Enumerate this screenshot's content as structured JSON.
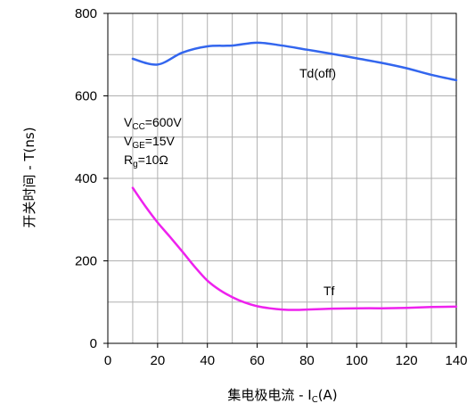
{
  "chart_data": {
    "type": "line",
    "xlabel": {
      "main": "集电极电流 - I",
      "sub": "C",
      "tail": "(A)"
    },
    "ylabel": "开关时间 - T(ns)",
    "xlim": [
      0,
      140
    ],
    "ylim": [
      0,
      800
    ],
    "x_ticks": [
      0,
      20,
      40,
      60,
      80,
      100,
      120,
      140
    ],
    "y_ticks": [
      0,
      200,
      400,
      600,
      800
    ],
    "grid": true,
    "conditions": [
      {
        "main": "V",
        "sub": "CC",
        "tail": "=600V"
      },
      {
        "main": "V",
        "sub": "GE",
        "tail": "=15V"
      },
      {
        "main": "R",
        "sub": "g",
        "tail": "=10Ω"
      }
    ],
    "series": [
      {
        "name": "Td(off)",
        "color": "#3366ee",
        "x": [
          10,
          20,
          30,
          40,
          50,
          60,
          70,
          80,
          90,
          100,
          110,
          120,
          130,
          140
        ],
        "y": [
          690,
          676,
          705,
          720,
          722,
          729,
          722,
          712,
          702,
          691,
          680,
          667,
          651,
          638
        ]
      },
      {
        "name": "Tf",
        "color": "#ee22ee",
        "x": [
          10,
          15,
          20,
          25,
          30,
          35,
          40,
          45,
          50,
          55,
          60,
          65,
          70,
          75,
          80,
          90,
          100,
          110,
          120,
          130,
          140
        ],
        "y": [
          377,
          333,
          293,
          258,
          222,
          185,
          152,
          129,
          112,
          99,
          90,
          85,
          82,
          81,
          82,
          84,
          85,
          85,
          86,
          88,
          89
        ]
      }
    ]
  }
}
